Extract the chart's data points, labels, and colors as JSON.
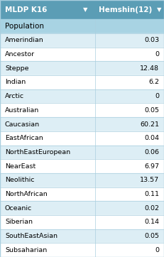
{
  "title_left": "MLDP K16",
  "title_right": "Hemshin(12)",
  "header_bg": "#5b9db5",
  "header_text_color": "#ffffff",
  "col_header": "Population",
  "col_header_bg": "#a8d3e3",
  "rows": [
    {
      "label": "Amerindian",
      "value": "0.03"
    },
    {
      "label": "Ancestor",
      "value": "0"
    },
    {
      "label": "Steppe",
      "value": "12.48"
    },
    {
      "label": "Indian",
      "value": "6.2"
    },
    {
      "label": "Arctic",
      "value": "0"
    },
    {
      "label": "Australian",
      "value": "0.05"
    },
    {
      "label": "Caucasian",
      "value": "60.21"
    },
    {
      "label": "EastAfrican",
      "value": "0.04"
    },
    {
      "label": "NorthEastEuropean",
      "value": "0.06"
    },
    {
      "label": "NearEast",
      "value": "6.97"
    },
    {
      "label": "Neolithic",
      "value": "13.57"
    },
    {
      "label": "NorthAfrican",
      "value": "0.11"
    },
    {
      "label": "Oceanic",
      "value": "0.02"
    },
    {
      "label": "Siberian",
      "value": "0.14"
    },
    {
      "label": "SouthEastAsian",
      "value": "0.05"
    },
    {
      "label": "Subsaharian",
      "value": "0"
    }
  ],
  "row_bg_even": "#ddeef5",
  "row_bg_odd": "#ffffff",
  "row_text_color": "#000000",
  "border_color": "#aacfdf",
  "fig_width": 2.31,
  "fig_height": 3.62,
  "dpi": 100
}
